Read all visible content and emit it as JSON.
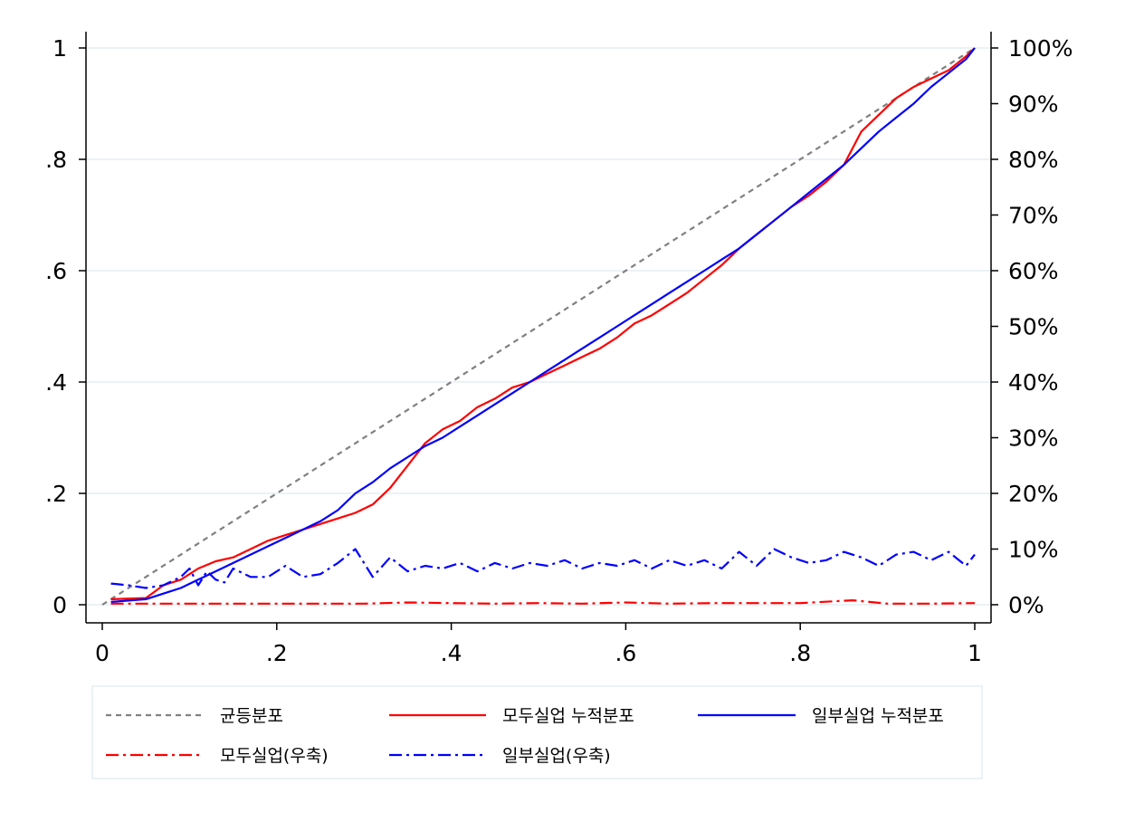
{
  "chart_data": {
    "type": "line",
    "title": "",
    "xlabel": "",
    "ylabel": "",
    "xlim": [
      0,
      1
    ],
    "ylim": [
      0,
      1
    ],
    "ylim_right": [
      0,
      100
    ],
    "grid": true,
    "legend_position": "bottom",
    "x_ticks": [
      "0",
      ".2",
      ".4",
      ".6",
      ".8",
      "1"
    ],
    "y_ticks_left": [
      "0",
      ".2",
      ".4",
      ".6",
      ".8",
      "1"
    ],
    "y_ticks_right": [
      "0%",
      "10%",
      "20%",
      "30%",
      "40%",
      "50%",
      "60%",
      "70%",
      "80%",
      "90%",
      "100%"
    ],
    "series": [
      {
        "name": "균등분포",
        "axis": "left",
        "color": "#808080",
        "style": "dashed",
        "x": [
          0,
          1
        ],
        "y": [
          0,
          1
        ]
      },
      {
        "name": "모두실업 누적분포",
        "axis": "left",
        "color": "#ff0000",
        "style": "solid",
        "x": [
          0.01,
          0.05,
          0.07,
          0.09,
          0.11,
          0.13,
          0.15,
          0.17,
          0.19,
          0.21,
          0.23,
          0.25,
          0.27,
          0.29,
          0.31,
          0.33,
          0.35,
          0.37,
          0.39,
          0.41,
          0.43,
          0.45,
          0.47,
          0.49,
          0.51,
          0.53,
          0.55,
          0.57,
          0.59,
          0.61,
          0.63,
          0.65,
          0.67,
          0.69,
          0.71,
          0.73,
          0.75,
          0.77,
          0.79,
          0.81,
          0.83,
          0.85,
          0.87,
          0.89,
          0.91,
          0.93,
          0.95,
          0.97,
          0.99,
          1.0
        ],
        "y": [
          0.01,
          0.012,
          0.035,
          0.045,
          0.065,
          0.078,
          0.085,
          0.1,
          0.115,
          0.125,
          0.135,
          0.145,
          0.155,
          0.165,
          0.18,
          0.21,
          0.25,
          0.29,
          0.315,
          0.33,
          0.355,
          0.37,
          0.39,
          0.4,
          0.415,
          0.43,
          0.445,
          0.46,
          0.48,
          0.505,
          0.52,
          0.54,
          0.56,
          0.585,
          0.61,
          0.64,
          0.665,
          0.69,
          0.715,
          0.735,
          0.76,
          0.79,
          0.85,
          0.88,
          0.91,
          0.93,
          0.945,
          0.96,
          0.985,
          1.0
        ]
      },
      {
        "name": "일부실업 누적분포",
        "axis": "left",
        "color": "#0000ff",
        "style": "solid",
        "x": [
          0.01,
          0.05,
          0.07,
          0.09,
          0.11,
          0.13,
          0.15,
          0.17,
          0.19,
          0.21,
          0.23,
          0.25,
          0.27,
          0.29,
          0.31,
          0.33,
          0.35,
          0.37,
          0.39,
          0.41,
          0.43,
          0.45,
          0.47,
          0.49,
          0.51,
          0.53,
          0.55,
          0.57,
          0.59,
          0.61,
          0.63,
          0.65,
          0.67,
          0.69,
          0.71,
          0.73,
          0.75,
          0.77,
          0.79,
          0.81,
          0.83,
          0.85,
          0.87,
          0.89,
          0.91,
          0.93,
          0.95,
          0.97,
          0.99,
          1.0
        ],
        "y": [
          0.005,
          0.01,
          0.02,
          0.03,
          0.045,
          0.06,
          0.075,
          0.09,
          0.105,
          0.12,
          0.135,
          0.15,
          0.17,
          0.2,
          0.22,
          0.245,
          0.265,
          0.285,
          0.3,
          0.32,
          0.34,
          0.36,
          0.38,
          0.4,
          0.42,
          0.44,
          0.46,
          0.48,
          0.5,
          0.52,
          0.54,
          0.56,
          0.58,
          0.6,
          0.62,
          0.64,
          0.665,
          0.69,
          0.715,
          0.74,
          0.765,
          0.79,
          0.82,
          0.85,
          0.875,
          0.9,
          0.93,
          0.955,
          0.98,
          1.0
        ]
      },
      {
        "name": "모두실업(우축)",
        "axis": "right",
        "color": "#ff0000",
        "style": "dashdot",
        "x": [
          0.01,
          0.05,
          0.1,
          0.15,
          0.2,
          0.25,
          0.3,
          0.35,
          0.4,
          0.45,
          0.5,
          0.55,
          0.6,
          0.65,
          0.7,
          0.75,
          0.8,
          0.86,
          0.9,
          0.95,
          1.0
        ],
        "y": [
          0.2,
          0.2,
          0.2,
          0.2,
          0.2,
          0.2,
          0.2,
          0.4,
          0.3,
          0.2,
          0.3,
          0.2,
          0.4,
          0.2,
          0.3,
          0.3,
          0.3,
          0.8,
          0.2,
          0.2,
          0.3
        ]
      },
      {
        "name": "일부실업(우축)",
        "axis": "right",
        "color": "#0000ff",
        "style": "dashdot",
        "x": [
          0.01,
          0.03,
          0.05,
          0.07,
          0.09,
          0.1,
          0.11,
          0.12,
          0.13,
          0.14,
          0.15,
          0.17,
          0.19,
          0.21,
          0.23,
          0.25,
          0.27,
          0.29,
          0.31,
          0.33,
          0.35,
          0.37,
          0.39,
          0.41,
          0.43,
          0.45,
          0.47,
          0.49,
          0.51,
          0.53,
          0.55,
          0.57,
          0.59,
          0.61,
          0.63,
          0.65,
          0.67,
          0.69,
          0.71,
          0.73,
          0.75,
          0.77,
          0.79,
          0.81,
          0.83,
          0.85,
          0.87,
          0.89,
          0.91,
          0.93,
          0.95,
          0.97,
          0.99,
          1.0
        ],
        "y": [
          3.8,
          3.5,
          3.0,
          3.5,
          5.0,
          6.5,
          3.5,
          6.0,
          4.5,
          4.0,
          6.5,
          5.0,
          5.0,
          7.0,
          5.0,
          5.5,
          7.5,
          10.0,
          5.0,
          8.5,
          6.0,
          7.0,
          6.5,
          7.5,
          6.0,
          7.5,
          6.5,
          7.5,
          7.0,
          8.0,
          6.5,
          7.5,
          7.0,
          8.0,
          6.5,
          8.0,
          7.0,
          8.0,
          6.5,
          9.5,
          7.0,
          10.0,
          8.5,
          7.5,
          8.0,
          9.5,
          8.5,
          7.0,
          9.0,
          9.5,
          8.0,
          9.5,
          7.0,
          9.0
        ]
      }
    ]
  }
}
